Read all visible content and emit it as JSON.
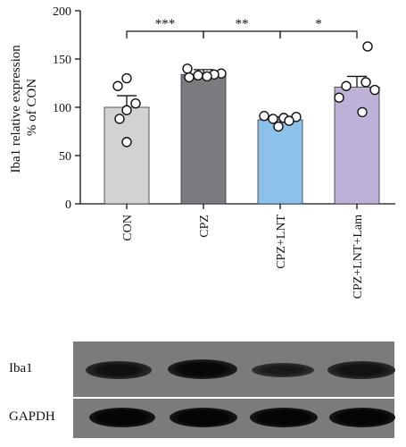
{
  "chart_data": {
    "type": "bar",
    "categories": [
      "CON",
      "CPZ",
      "CPZ+LNT",
      "CPZ+LNT+Lam"
    ],
    "values": [
      100,
      134,
      87,
      121
    ],
    "errors": [
      12,
      5,
      3,
      11
    ],
    "points": [
      [
        130,
        122,
        104,
        97,
        88,
        64
      ],
      [
        140,
        135,
        134,
        133,
        132,
        131
      ],
      [
        91,
        90,
        89,
        88,
        86,
        80
      ],
      [
        163,
        126,
        122,
        118,
        110,
        95
      ]
    ],
    "bar_colors": [
      "#d2d2d2",
      "#7b7b7f",
      "#8cc2ea",
      "#bdb1d8"
    ],
    "ylabel_line1": "Iba1 relative expression",
    "ylabel_line2": "% of CON",
    "ylim": [
      0,
      200
    ],
    "yticks": [
      0,
      50,
      100,
      150,
      200
    ],
    "significance": [
      {
        "from": 0,
        "to": 1,
        "label": "***"
      },
      {
        "from": 1,
        "to": 2,
        "label": "**"
      },
      {
        "from": 2,
        "to": 3,
        "label": "*"
      }
    ]
  },
  "blot": {
    "rows": [
      {
        "label": "Iba1"
      },
      {
        "label": "GAPDH"
      }
    ]
  }
}
